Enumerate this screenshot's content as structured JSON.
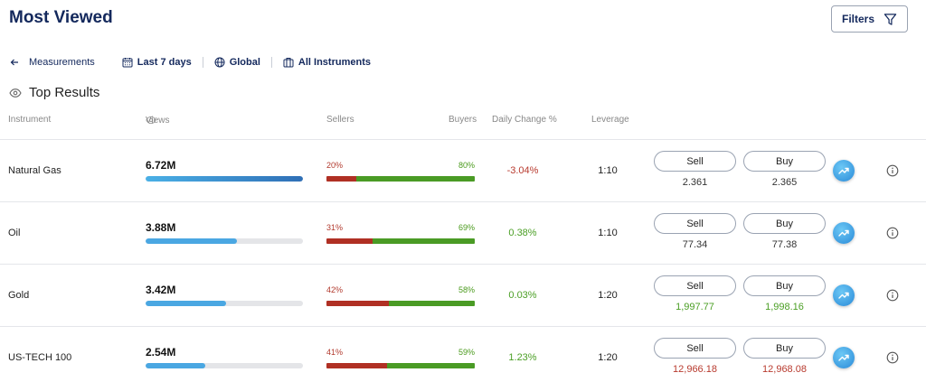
{
  "page": {
    "title": "Most Viewed",
    "filters_label": "Filters"
  },
  "toolbar": {
    "back_label": "Measurements",
    "period_label": "Last 7 days",
    "region_label": "Global",
    "instruments_label": "All Instruments"
  },
  "section": {
    "title": "Top Results"
  },
  "columns": {
    "instrument": "Instrument",
    "views": "Views",
    "sellers": "Sellers",
    "buyers": "Buyers",
    "daily_change": "Daily Change %",
    "leverage": "Leverage"
  },
  "rows": [
    {
      "name": "Natural Gas",
      "views": "6.72M",
      "views_fraction": 1.0,
      "sellers_pct": "20%",
      "buyers_pct": "80%",
      "sellers_value": 20,
      "daily_change": "-3.04%",
      "change_dir": "neg",
      "leverage": "1:10",
      "sell_label": "Sell",
      "buy_label": "Buy",
      "sell_price": "2.361",
      "buy_price": "2.365",
      "price_tone": "neutral"
    },
    {
      "name": "Oil",
      "views": "3.88M",
      "views_fraction": 0.58,
      "sellers_pct": "31%",
      "buyers_pct": "69%",
      "sellers_value": 31,
      "daily_change": "0.38%",
      "change_dir": "pos",
      "leverage": "1:10",
      "sell_label": "Sell",
      "buy_label": "Buy",
      "sell_price": "77.34",
      "buy_price": "77.38",
      "price_tone": "neutral"
    },
    {
      "name": "Gold",
      "views": "3.42M",
      "views_fraction": 0.51,
      "sellers_pct": "42%",
      "buyers_pct": "58%",
      "sellers_value": 42,
      "daily_change": "0.03%",
      "change_dir": "pos",
      "leverage": "1:20",
      "sell_label": "Sell",
      "buy_label": "Buy",
      "sell_price": "1,997.77",
      "buy_price": "1,998.16",
      "price_tone": "up"
    },
    {
      "name": "US-TECH 100",
      "views": "2.54M",
      "views_fraction": 0.38,
      "sellers_pct": "41%",
      "buyers_pct": "59%",
      "sellers_value": 41,
      "daily_change": "1.23%",
      "change_dir": "pos",
      "leverage": "1:20",
      "sell_label": "Sell",
      "buy_label": "Buy",
      "sell_price": "12,966.18",
      "buy_price": "12,968.08",
      "price_tone": "down"
    }
  ],
  "colors": {
    "title": "#13285c",
    "negative": "#b83a2e",
    "positive": "#4b9f25",
    "views_bar": "#4aa7e2"
  },
  "icons": {
    "filter": "filter-icon",
    "back": "arrow-left-icon",
    "calendar": "calendar-icon",
    "globe": "globe-icon",
    "briefcase": "briefcase-icon",
    "eye": "eye-icon",
    "trend": "trend-chart-icon",
    "info": "info-icon"
  }
}
